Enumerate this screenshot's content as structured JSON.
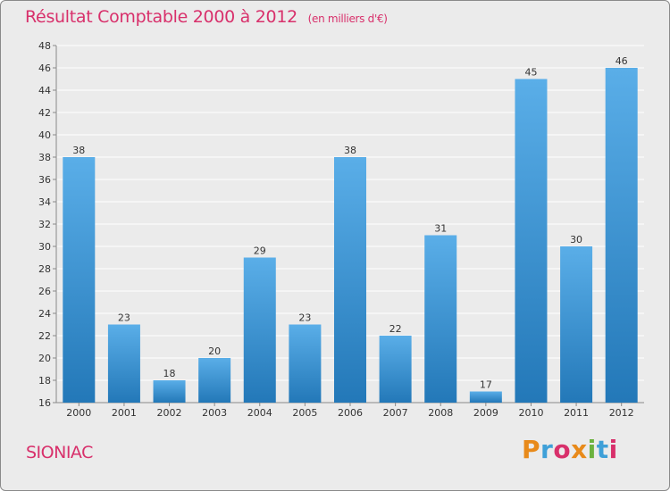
{
  "header": {
    "title": "Résultat Comptable 2000 à 2012",
    "unit": "(en milliers d'€)"
  },
  "footer": {
    "commune": "SIONIAC",
    "logo": {
      "letters": [
        "P",
        "r",
        "o",
        "x",
        "i",
        "t",
        "i"
      ],
      "colors": [
        "#e88a1a",
        "#3fa0d8",
        "#d8306b",
        "#e88a1a",
        "#6cb23f",
        "#3fa0d8",
        "#d8306b"
      ]
    }
  },
  "colors": {
    "bar_light": "#5aaee8",
    "bar_dark": "#2378b8",
    "title": "#d8306b",
    "grid": "#ffffff"
  },
  "chart_data": {
    "type": "bar",
    "title": "Résultat Comptable 2000 à 2012",
    "ylabel": "(en milliers d'€)",
    "xlabel": "",
    "categories": [
      "2000",
      "2001",
      "2002",
      "2003",
      "2004",
      "2005",
      "2006",
      "2007",
      "2008",
      "2009",
      "2010",
      "2011",
      "2012"
    ],
    "values": [
      38,
      23,
      18,
      20,
      29,
      23,
      38,
      22,
      31,
      17,
      45,
      30,
      46
    ],
    "ylim": [
      16,
      48
    ],
    "yticks": [
      16,
      18,
      20,
      22,
      24,
      26,
      28,
      30,
      32,
      34,
      36,
      38,
      40,
      42,
      44,
      46,
      48
    ],
    "grid": true
  }
}
